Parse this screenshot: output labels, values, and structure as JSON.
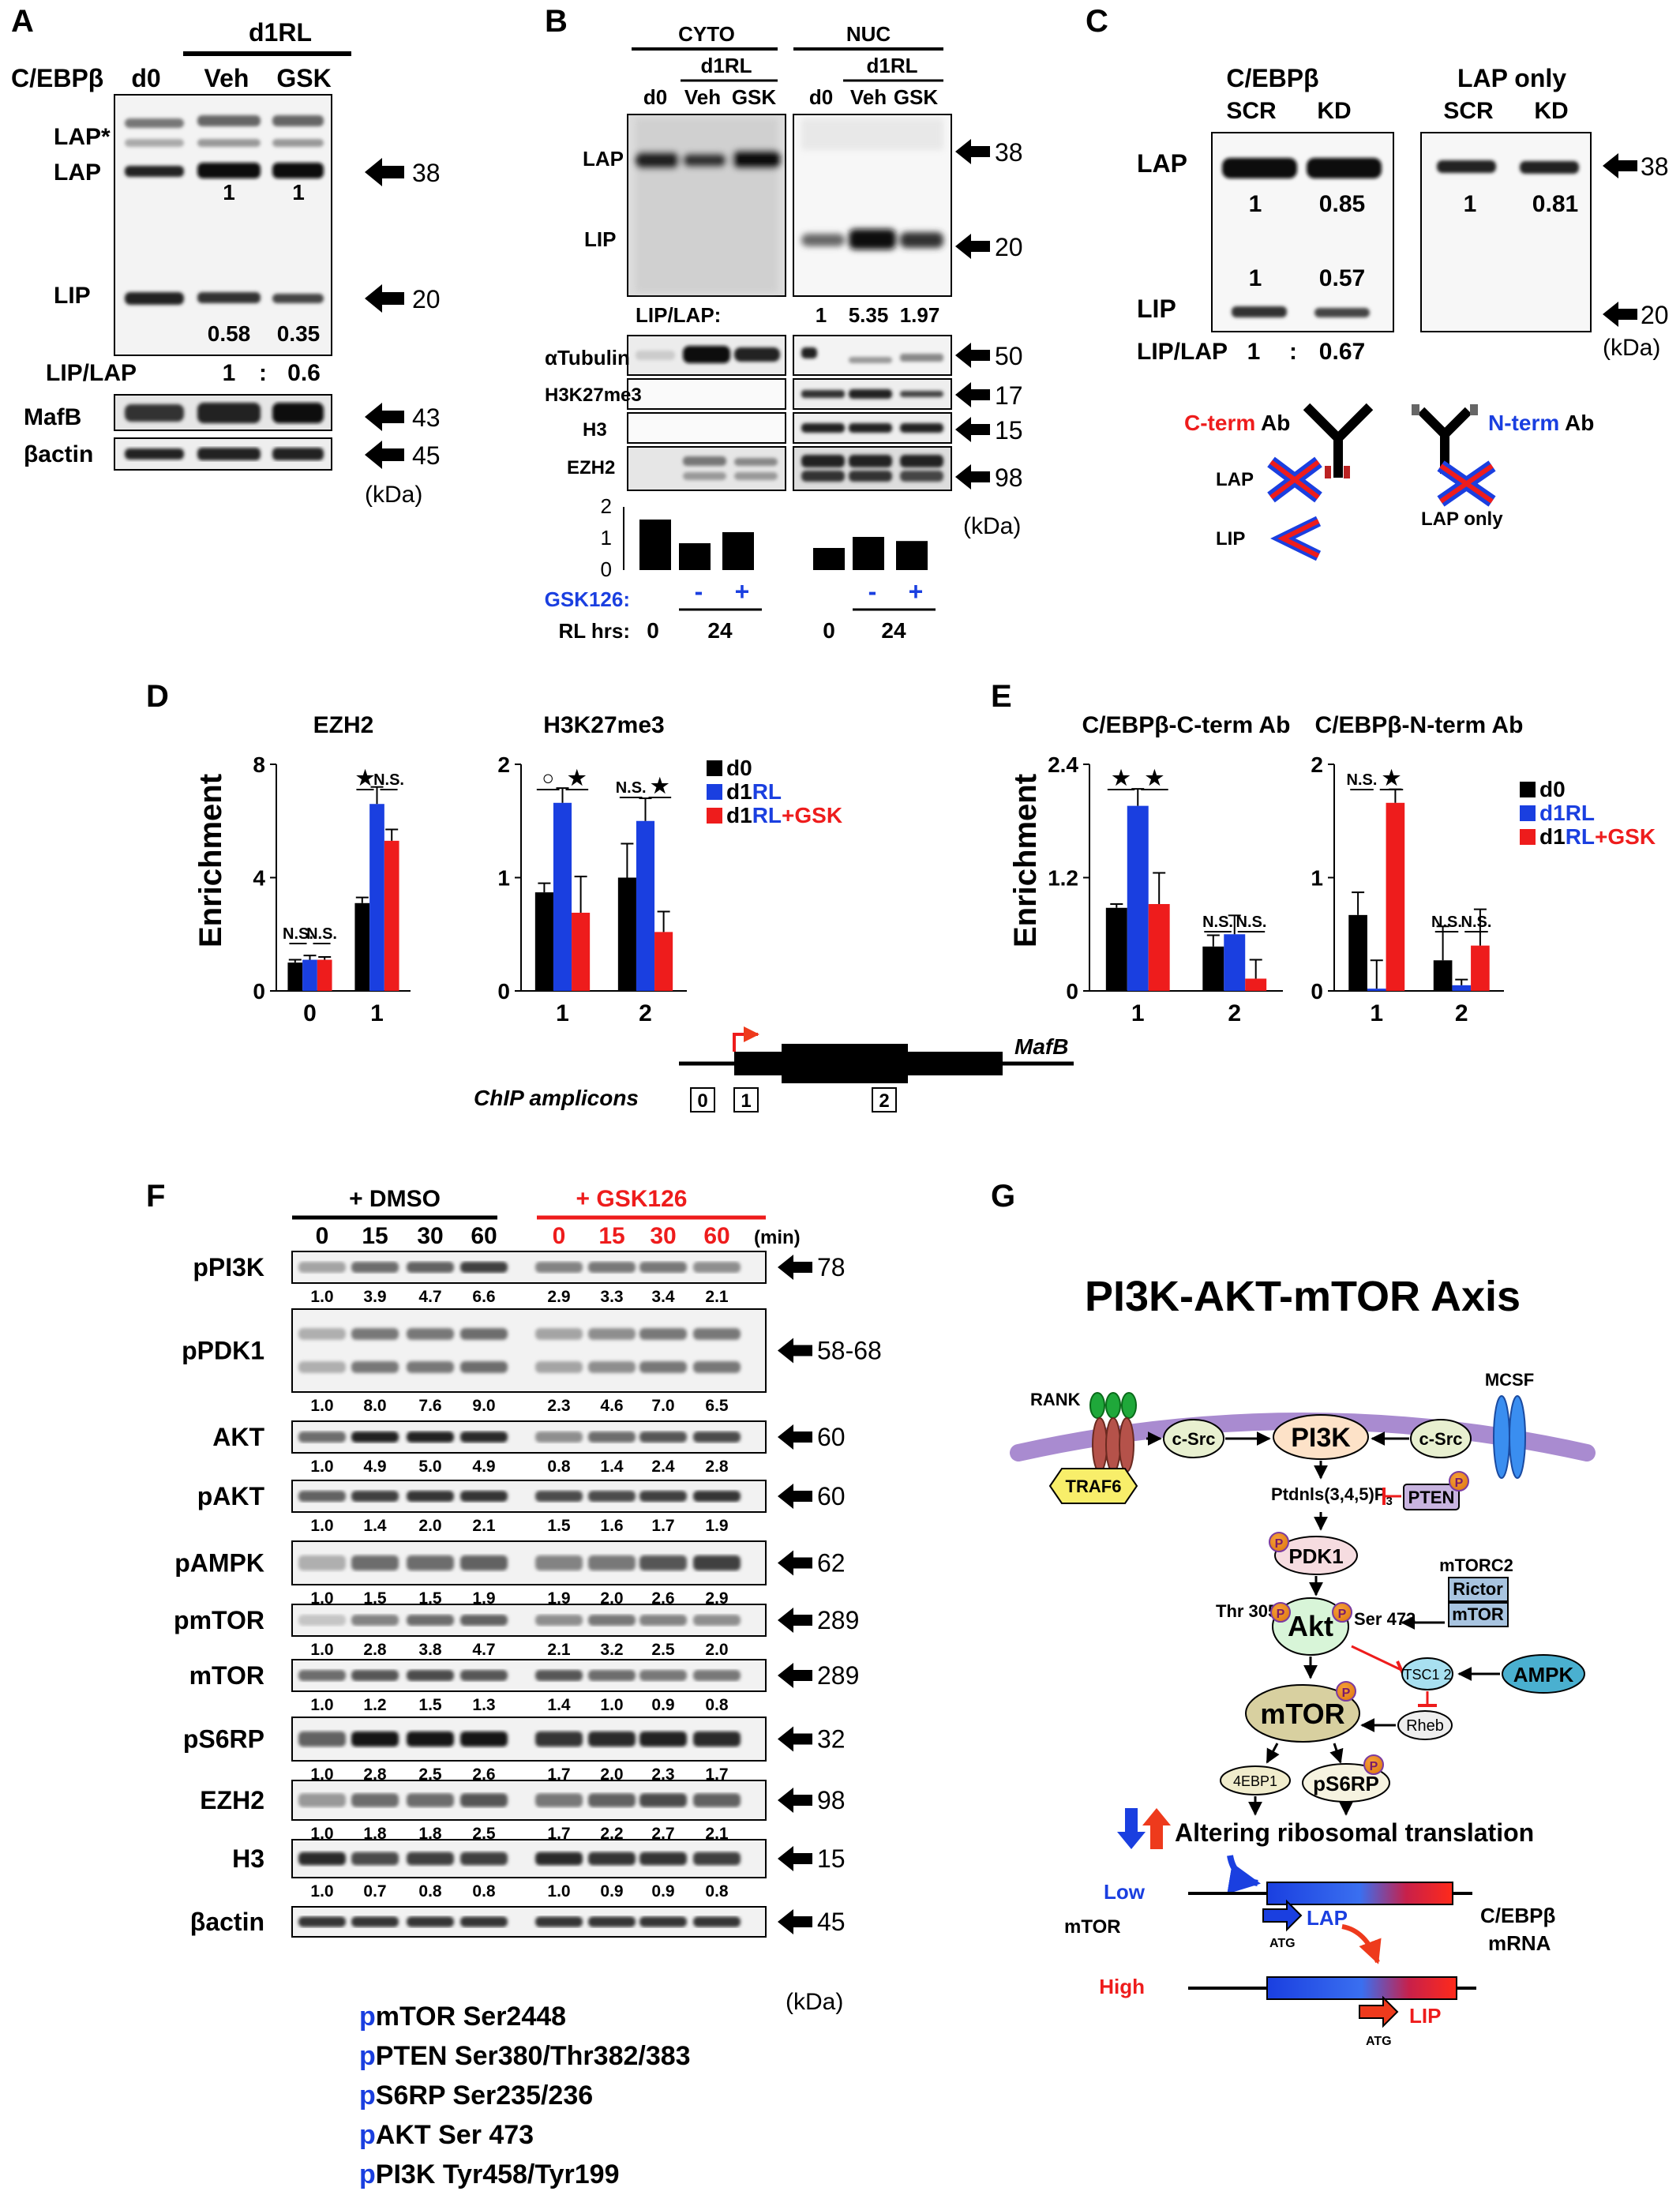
{
  "panelA": {
    "letter": "A",
    "group": "d1RL",
    "protein": "C/EBPβ",
    "lanes": [
      "d0",
      "Veh",
      "GSK"
    ],
    "bandLabels": [
      "LAP*",
      "LAP",
      "LIP"
    ],
    "lapQuant": [
      "1",
      "1"
    ],
    "lipQuant": [
      "0.58",
      "0.35"
    ],
    "ratioLabel": "LIP/LAP",
    "ratio": [
      "1",
      ":",
      "0.6"
    ],
    "rows": [
      "MafB",
      "βactin"
    ],
    "mw": [
      "38",
      "20",
      "43",
      "45"
    ],
    "unit": "(kDa)"
  },
  "panelB": {
    "letter": "B",
    "fractions": [
      "CYTO",
      "NUC"
    ],
    "group": "d1RL",
    "lanes": [
      "d0",
      "Veh",
      "GSK"
    ],
    "bandLabels": [
      "LAP",
      "LIP"
    ],
    "ratioLabel": "LIP/LAP:",
    "ratios": [
      "1",
      "5.35",
      "1.97"
    ],
    "rows": [
      "αTubulin",
      "H3K27me3",
      "H3",
      "EZH2"
    ],
    "mw": [
      "38",
      "20",
      "50",
      "17",
      "15",
      "98"
    ],
    "unit": "(kDa)",
    "axisTicks": [
      "2",
      "1",
      "0"
    ],
    "bars": [
      1.6,
      0.85,
      1.2,
      0.7,
      1.05,
      0.92
    ],
    "gskLabel": "GSK126:",
    "gskSigns": [
      "-",
      "+",
      "-",
      "+"
    ],
    "rlLabel": "RL hrs:",
    "rlValues": [
      "0",
      "24",
      "0",
      "24"
    ]
  },
  "panelC": {
    "letter": "C",
    "leftTitle": "C/EBPβ",
    "rightTitle": "LAP only",
    "lanes": [
      "SCR",
      "KD"
    ],
    "bandLabels": [
      "LAP",
      "LIP"
    ],
    "lapQuant": [
      "1",
      "0.85"
    ],
    "lipQuant": [
      "1",
      "0.57"
    ],
    "rightQuant": [
      "1",
      "0.81"
    ],
    "ratioLabel": "LIP/LAP",
    "ratio": [
      "1",
      ":",
      "0.67"
    ],
    "mw": [
      "38",
      "20"
    ],
    "unit": "(kDa)",
    "cterm": "C-term",
    "nterm": "N-term",
    "ab": "Ab",
    "diagramLabels": [
      "LAP",
      "LIP",
      "LAP only"
    ]
  },
  "panelD": {
    "letter": "D",
    "yLabel": "Enrichment",
    "legend": [
      "d0",
      "d1",
      "RL",
      "d1",
      "RL",
      "+GSK"
    ],
    "amplicons": [
      "0",
      "1",
      "2"
    ],
    "geneLabel": "MafB",
    "ampliconLabel": "ChIP amplicons",
    "ns": "N.S.",
    "star": "★",
    "circle": "○"
  },
  "chart_data": [
    {
      "type": "bar",
      "title": "EZH2",
      "ylabel": "Enrichment",
      "categories": [
        "0",
        "1"
      ],
      "ylim": [
        0,
        8
      ],
      "yticks": [
        "0",
        "4",
        "8"
      ],
      "series": [
        {
          "name": "d0",
          "values": [
            1.0,
            3.1
          ],
          "errors": [
            0.1,
            0.2
          ]
        },
        {
          "name": "d1RL",
          "values": [
            1.1,
            6.6
          ],
          "errors": [
            0.15,
            0.6
          ]
        },
        {
          "name": "d1RL+GSK",
          "values": [
            1.1,
            5.3
          ],
          "errors": [
            0.1,
            0.4
          ]
        }
      ]
    },
    {
      "type": "bar",
      "title": "H3K27me3",
      "categories": [
        "1",
        "2"
      ],
      "ylim": [
        0,
        2
      ],
      "yticks": [
        "0",
        "1",
        "2"
      ],
      "series": [
        {
          "name": "d0",
          "values": [
            0.87,
            1.0
          ],
          "errors": [
            0.08,
            0.3
          ]
        },
        {
          "name": "d1RL",
          "values": [
            1.66,
            1.5
          ],
          "errors": [
            0.13,
            0.2
          ]
        },
        {
          "name": "d1RL+GSK",
          "values": [
            0.69,
            0.52
          ],
          "errors": [
            0.32,
            0.18
          ]
        }
      ]
    },
    {
      "type": "bar",
      "title": "C/EBPβ-C-term Ab",
      "categories": [
        "1",
        "2"
      ],
      "ylim": [
        0,
        2.4
      ],
      "yticks": [
        "0",
        "1.2",
        "2.4"
      ],
      "series": [
        {
          "name": "d0",
          "values": [
            0.88,
            0.47
          ],
          "errors": [
            0.04,
            0.12
          ]
        },
        {
          "name": "d1RL",
          "values": [
            1.96,
            0.6
          ],
          "errors": [
            0.18,
            0.2
          ]
        },
        {
          "name": "d1RL+GSK",
          "values": [
            0.92,
            0.13
          ],
          "errors": [
            0.33,
            0.2
          ]
        }
      ]
    },
    {
      "type": "bar",
      "title": "C/EBPβ-N-term Ab",
      "categories": [
        "1",
        "2"
      ],
      "ylim": [
        0,
        2
      ],
      "yticks": [
        "0",
        "1",
        "2"
      ],
      "series": [
        {
          "name": "d0",
          "values": [
            0.67,
            0.27
          ],
          "errors": [
            0.2,
            0.3
          ]
        },
        {
          "name": "d1RL",
          "values": [
            0.02,
            0.05
          ],
          "errors": [
            0.25,
            0.05
          ]
        },
        {
          "name": "d1RL+GSK",
          "values": [
            1.66,
            0.4
          ],
          "errors": [
            0.12,
            0.32
          ]
        }
      ]
    }
  ],
  "panelE": {
    "letter": "E",
    "yLabel": "Enrichment",
    "legend": [
      "d0",
      "d1",
      "RL",
      "d1",
      "RL",
      "+GSK"
    ]
  },
  "panelF": {
    "letter": "F",
    "dmso": "+ DMSO",
    "gsk": "+ GSK126",
    "times": [
      "0",
      "15",
      "30",
      "60",
      "0",
      "15",
      "30",
      "60"
    ],
    "minLabel": "(min)",
    "unit": "(kDa)",
    "rows": [
      {
        "label": "pPI3K",
        "mw": "78",
        "values": [
          "1.0",
          "3.9",
          "4.7",
          "6.6",
          "2.9",
          "3.3",
          "3.4",
          "2.1"
        ]
      },
      {
        "label": "pPDK1",
        "mw": "58-68",
        "values": [
          "1.0",
          "8.0",
          "7.6",
          "9.0",
          "2.3",
          "4.6",
          "7.0",
          "6.5"
        ]
      },
      {
        "label": "AKT",
        "mw": "60",
        "values": [
          "1.0",
          "4.9",
          "5.0",
          "4.9",
          "0.8",
          "1.4",
          "2.4",
          "2.8"
        ]
      },
      {
        "label": "pAKT",
        "mw": "60",
        "values": [
          "1.0",
          "1.4",
          "2.0",
          "2.1",
          "1.5",
          "1.6",
          "1.7",
          "1.9"
        ]
      },
      {
        "label": "pAMPK",
        "mw": "62",
        "values": [
          "1.0",
          "1.5",
          "1.5",
          "1.9",
          "1.9",
          "2.0",
          "2.6",
          "2.9"
        ]
      },
      {
        "label": "pmTOR",
        "mw": "289",
        "values": [
          "1.0",
          "2.8",
          "3.8",
          "4.7",
          "2.1",
          "3.2",
          "2.5",
          "2.0"
        ]
      },
      {
        "label": "mTOR",
        "mw": "289",
        "values": [
          "1.0",
          "1.2",
          "1.5",
          "1.3",
          "1.4",
          "1.0",
          "0.9",
          "0.8"
        ]
      },
      {
        "label": "pS6RP",
        "mw": "32",
        "values": [
          "1.0",
          "2.8",
          "2.5",
          "2.6",
          "1.7",
          "2.0",
          "2.3",
          "1.7"
        ]
      },
      {
        "label": "EZH2",
        "mw": "98",
        "values": [
          "1.0",
          "1.8",
          "1.8",
          "2.5",
          "1.7",
          "2.2",
          "2.7",
          "2.1"
        ]
      },
      {
        "label": "H3",
        "mw": "15",
        "values": [
          "1.0",
          "0.7",
          "0.8",
          "0.8",
          "1.0",
          "0.9",
          "0.9",
          "0.8"
        ]
      },
      {
        "label": "βactin",
        "mw": "45",
        "values": []
      }
    ],
    "notes": [
      {
        "p": "p",
        "text": "mTOR Ser2448"
      },
      {
        "p": "p",
        "text": "PTEN Ser380/Thr382/383"
      },
      {
        "p": "p",
        "text": "S6RP Ser235/236"
      },
      {
        "p": "p",
        "text": "AKT Ser 473"
      },
      {
        "p": "p",
        "text": "PI3K Tyr458/Tyr199"
      }
    ]
  },
  "panelG": {
    "letter": "G",
    "title": "PI3K-AKT-mTOR Axis",
    "rank": "RANK",
    "mcsf": "MCSF",
    "traf6": "TRAF6",
    "csrc": "c-Src",
    "pi3k": "PI3K",
    "pip3": "Ptdnls(3,4,5)P",
    "pip3sub": "3",
    "pten": "PTEN",
    "pdk1": "PDK1",
    "mtorc2": "mTORC2",
    "rictor": "Rictor",
    "mtor": "mTOR",
    "thr": "Thr 305",
    "ser": "Ser 473",
    "akt": "Akt",
    "tsc": "TSC1 2",
    "ampk": "AMPK",
    "rheb": "Rheb",
    "ebp": "4EBP1",
    "s6rp": "pS6RP",
    "p": "P",
    "altering": "Altering ribosomal translation",
    "low": "Low",
    "high": "High",
    "mtorLabel": "mTOR",
    "lap": "LAP",
    "lip": "LIP",
    "atg": "ATG",
    "cebp": "C/EBPβ",
    "mrna": "mRNA"
  },
  "colors": {
    "d0": "#000000",
    "d1RL": "#1a3fe0",
    "gsk": "#ee1c1c",
    "purple": "#a98bd0"
  }
}
